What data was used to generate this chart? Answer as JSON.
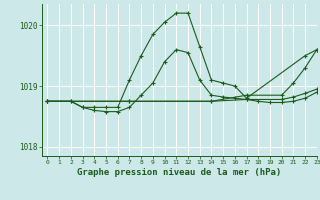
{
  "background_color": "#cce8e8",
  "grid_color": "#ffffff",
  "line_color": "#1a5c1a",
  "title": "Graphe pression niveau de la mer (hPa)",
  "title_color": "#1a5c1a",
  "xlim": [
    -0.5,
    23
  ],
  "ylim": [
    1017.85,
    1020.35
  ],
  "yticks": [
    1018,
    1019,
    1020
  ],
  "xticks": [
    0,
    1,
    2,
    3,
    4,
    5,
    6,
    7,
    8,
    9,
    10,
    11,
    12,
    13,
    14,
    15,
    16,
    17,
    18,
    19,
    20,
    21,
    22,
    23
  ],
  "series": [
    {
      "x": [
        0,
        2,
        3,
        4,
        5,
        6,
        7,
        8,
        9,
        10,
        11,
        12,
        13,
        14,
        15,
        16,
        17,
        22,
        23
      ],
      "y": [
        1018.75,
        1018.75,
        1018.65,
        1018.65,
        1018.65,
        1018.65,
        1019.1,
        1019.5,
        1019.85,
        1020.05,
        1020.2,
        1020.2,
        1019.65,
        1019.1,
        1019.05,
        1019.0,
        1018.8,
        1019.5,
        1019.6
      ]
    },
    {
      "x": [
        0,
        7,
        14,
        17,
        20,
        21,
        22,
        23
      ],
      "y": [
        1018.75,
        1018.75,
        1018.75,
        1018.85,
        1018.85,
        1019.05,
        1019.3,
        1019.6
      ]
    },
    {
      "x": [
        0,
        7,
        14,
        17,
        20,
        21,
        22,
        23
      ],
      "y": [
        1018.75,
        1018.75,
        1018.75,
        1018.78,
        1018.78,
        1018.82,
        1018.88,
        1018.95
      ]
    },
    {
      "x": [
        0,
        2,
        3,
        4,
        5,
        6,
        7,
        8,
        9,
        10,
        11,
        12,
        13,
        14,
        15,
        16,
        17,
        18,
        19,
        20,
        21,
        22,
        23
      ],
      "y": [
        1018.75,
        1018.75,
        1018.65,
        1018.6,
        1018.58,
        1018.58,
        1018.65,
        1018.85,
        1019.05,
        1019.4,
        1019.6,
        1019.55,
        1019.1,
        1018.85,
        1018.82,
        1018.8,
        1018.78,
        1018.75,
        1018.73,
        1018.73,
        1018.75,
        1018.8,
        1018.9
      ]
    }
  ]
}
